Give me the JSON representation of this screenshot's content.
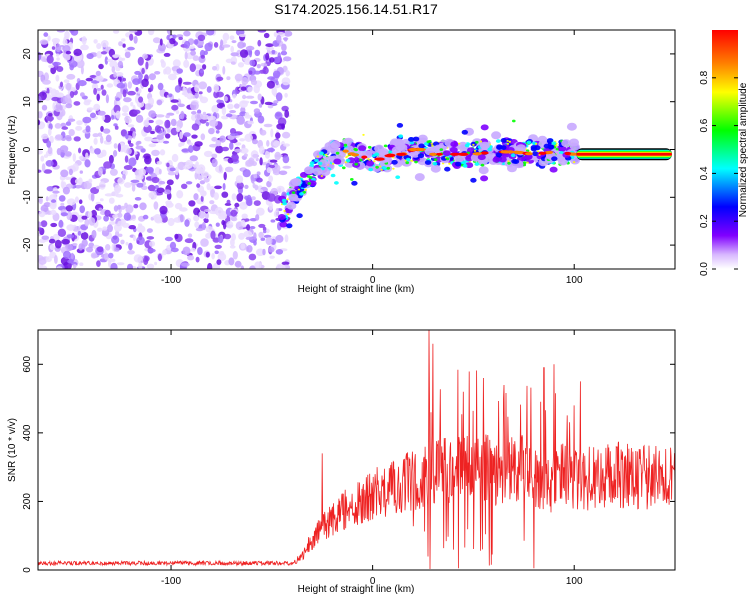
{
  "chart_data": [
    {
      "type": "heatmap",
      "title": "S174.2025.156.14.51.R17",
      "xlabel": "Height of straight line (km)",
      "ylabel": "Frequency (Hz)",
      "xlim": [
        -166,
        150
      ],
      "ylim": [
        -25,
        25
      ],
      "xticks": [
        -100,
        0,
        100
      ],
      "yticks": [
        -20,
        -10,
        0,
        10,
        20
      ],
      "colorbar": {
        "label": "Normalized spectral amplitude",
        "range": [
          0,
          1
        ],
        "ticks": [
          0.0,
          0.2,
          0.4,
          0.6,
          0.8
        ],
        "colormap": [
          "#ffffff",
          "#d8b8ff",
          "#8000ff",
          "#0000ff",
          "#00ffff",
          "#00ff00",
          "#ffff00",
          "#ff8000",
          "#ff0000"
        ]
      },
      "features": {
        "noise_region_x": [
          -166,
          -45
        ],
        "ridge": {
          "x": [
            -45,
            -40,
            -35,
            -30,
            -25,
            -20,
            -15,
            -10,
            -5,
            0,
            5,
            10,
            15,
            20,
            25,
            30,
            40,
            50,
            60,
            70,
            80,
            90,
            100,
            150
          ],
          "y": [
            -14,
            -10,
            -7,
            -5,
            -3,
            -1,
            0,
            -1,
            -1.5,
            -2,
            -2,
            -1,
            -1,
            0,
            0,
            -1,
            -1,
            -1,
            -0.5,
            -0.5,
            -1,
            -0.5,
            -1,
            -1
          ]
        },
        "steady_band_x": [
          101,
          150
        ],
        "steady_band_y": -1
      }
    },
    {
      "type": "line",
      "title": "",
      "xlabel": "Height of straight line (km)",
      "ylabel": "SNR (10 * v/v)",
      "xlim": [
        -166,
        150
      ],
      "ylim": [
        0,
        700
      ],
      "xticks": [
        -100,
        0,
        100
      ],
      "yticks": [
        0,
        200,
        400,
        600
      ],
      "series": [
        {
          "color": "#ee2222",
          "envelope_x": [
            -166,
            -40,
            -35,
            -30,
            -20,
            -10,
            0,
            10,
            20,
            28,
            35,
            45,
            55,
            65,
            75,
            85,
            95,
            100,
            110,
            120,
            130,
            150
          ],
          "envelope_y": [
            20,
            20,
            40,
            90,
            150,
            190,
            220,
            240,
            260,
            290,
            300,
            290,
            300,
            280,
            300,
            240,
            280,
            260,
            270,
            280,
            270,
            270
          ],
          "spikes": [
            [
              -25,
              340
            ],
            [
              28,
              700
            ],
            [
              30,
              660
            ],
            [
              45,
              520
            ],
            [
              55,
              560
            ],
            [
              65,
              500
            ],
            [
              85,
              590
            ],
            [
              90,
              600
            ],
            [
              100,
              480
            ],
            [
              103,
              550
            ]
          ]
        }
      ]
    }
  ]
}
